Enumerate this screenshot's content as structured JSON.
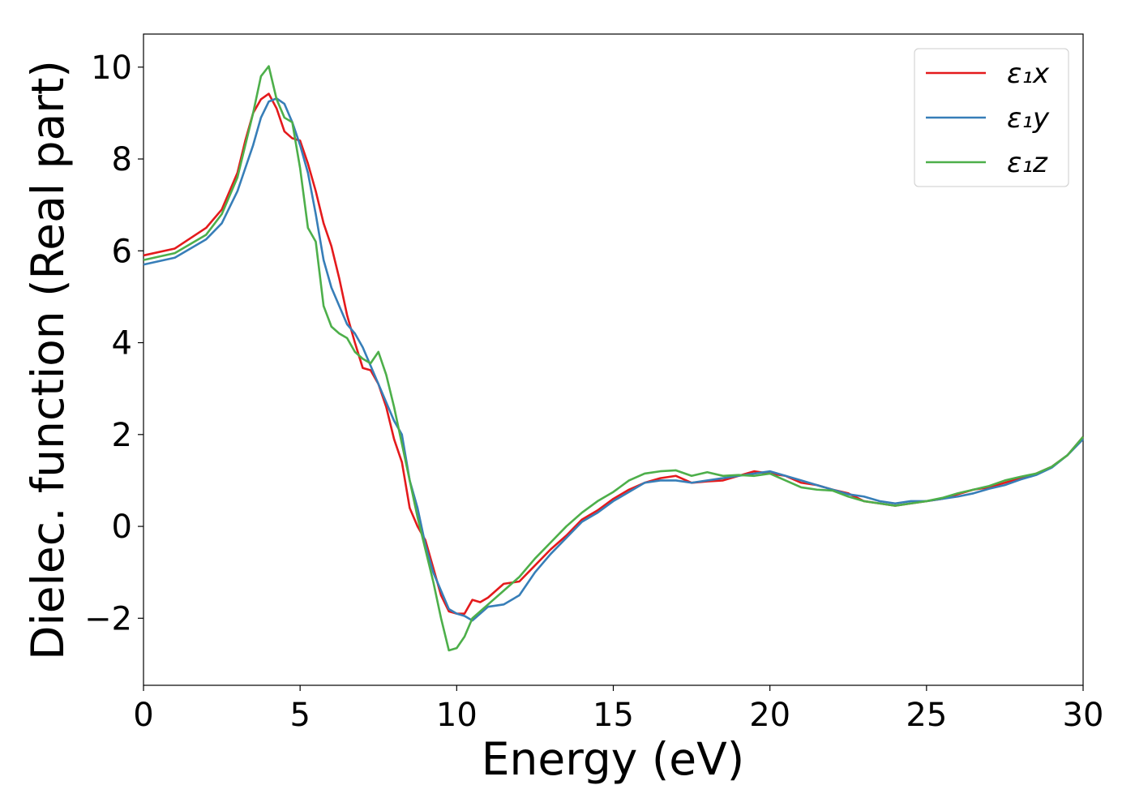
{
  "chart_data": {
    "type": "line",
    "x_label": "Energy (eV)",
    "y_label": "Dielec. function (Real part)",
    "x": [
      0,
      1,
      2,
      2.5,
      3,
      3.25,
      3.5,
      3.75,
      4,
      4.25,
      4.5,
      4.75,
      5,
      5.25,
      5.5,
      5.75,
      6,
      6.25,
      6.5,
      6.75,
      7,
      7.25,
      7.5,
      7.75,
      8,
      8.25,
      8.5,
      8.75,
      9,
      9.25,
      9.5,
      9.75,
      10,
      10.25,
      10.5,
      10.75,
      11,
      11.5,
      12,
      12.5,
      13,
      13.5,
      14,
      14.5,
      15,
      15.5,
      16,
      16.5,
      17,
      17.5,
      18,
      18.5,
      19,
      19.5,
      20,
      20.5,
      21,
      21.5,
      22,
      22.5,
      23,
      23.5,
      24,
      24.5,
      25,
      25.5,
      26,
      26.5,
      27,
      27.5,
      28,
      28.5,
      29,
      29.5,
      30
    ],
    "series": [
      {
        "name": "ε₁x",
        "color": "#e41a1c",
        "values": [
          5.9,
          6.05,
          6.5,
          6.9,
          7.7,
          8.4,
          9.0,
          9.3,
          9.42,
          9.1,
          8.6,
          8.45,
          8.4,
          7.9,
          7.3,
          6.6,
          6.1,
          5.4,
          4.6,
          4.0,
          3.45,
          3.4,
          3.1,
          2.6,
          1.9,
          1.4,
          0.4,
          0.0,
          -0.3,
          -0.9,
          -1.5,
          -1.85,
          -1.9,
          -1.9,
          -1.6,
          -1.65,
          -1.55,
          -1.25,
          -1.2,
          -0.85,
          -0.5,
          -0.2,
          0.15,
          0.35,
          0.6,
          0.8,
          0.95,
          1.05,
          1.1,
          0.95,
          0.98,
          1.0,
          1.1,
          1.2,
          1.15,
          1.1,
          0.95,
          0.9,
          0.8,
          0.72,
          0.55,
          0.5,
          0.45,
          0.5,
          0.55,
          0.6,
          0.7,
          0.8,
          0.85,
          0.95,
          1.05,
          1.15,
          1.3,
          1.55,
          1.95
        ]
      },
      {
        "name": "ε₁y",
        "color": "#377eb8",
        "values": [
          5.7,
          5.85,
          6.25,
          6.6,
          7.3,
          7.8,
          8.3,
          8.9,
          9.25,
          9.32,
          9.2,
          8.8,
          8.3,
          7.7,
          6.8,
          5.8,
          5.2,
          4.8,
          4.4,
          4.2,
          3.9,
          3.5,
          3.1,
          2.7,
          2.3,
          2.0,
          1.0,
          0.4,
          -0.4,
          -1.0,
          -1.4,
          -1.8,
          -1.9,
          -1.95,
          -2.05,
          -1.9,
          -1.75,
          -1.7,
          -1.5,
          -1.0,
          -0.6,
          -0.25,
          0.1,
          0.3,
          0.55,
          0.75,
          0.95,
          1.0,
          1.0,
          0.95,
          1.0,
          1.05,
          1.1,
          1.15,
          1.2,
          1.1,
          1.0,
          0.9,
          0.8,
          0.7,
          0.65,
          0.55,
          0.5,
          0.55,
          0.55,
          0.6,
          0.65,
          0.72,
          0.82,
          0.9,
          1.02,
          1.12,
          1.28,
          1.55,
          1.9
        ]
      },
      {
        "name": "ε₁z",
        "color": "#4daf4a",
        "values": [
          5.8,
          5.95,
          6.35,
          6.8,
          7.6,
          8.3,
          9.0,
          9.8,
          10.02,
          9.3,
          8.9,
          8.8,
          7.8,
          6.5,
          6.2,
          4.8,
          4.35,
          4.2,
          4.1,
          3.8,
          3.65,
          3.55,
          3.8,
          3.3,
          2.6,
          1.8,
          1.0,
          0.2,
          -0.5,
          -1.2,
          -2.0,
          -2.7,
          -2.65,
          -2.4,
          -2.0,
          -1.85,
          -1.7,
          -1.4,
          -1.1,
          -0.7,
          -0.35,
          0.0,
          0.3,
          0.55,
          0.75,
          1.0,
          1.15,
          1.2,
          1.22,
          1.1,
          1.18,
          1.1,
          1.12,
          1.1,
          1.15,
          1.0,
          0.85,
          0.8,
          0.78,
          0.65,
          0.55,
          0.5,
          0.45,
          0.5,
          0.55,
          0.62,
          0.72,
          0.8,
          0.88,
          1.0,
          1.08,
          1.15,
          1.3,
          1.55,
          1.95
        ]
      }
    ],
    "xlim": [
      0,
      30
    ],
    "xticks": [
      0,
      5,
      10,
      15,
      20,
      25,
      30
    ],
    "ylim": [
      -3.46,
      10.72
    ],
    "yticks": [
      {
        "value": -2,
        "label": "−2"
      },
      0,
      2,
      4,
      6,
      8,
      10
    ],
    "legend": "upper right",
    "grid": false
  }
}
